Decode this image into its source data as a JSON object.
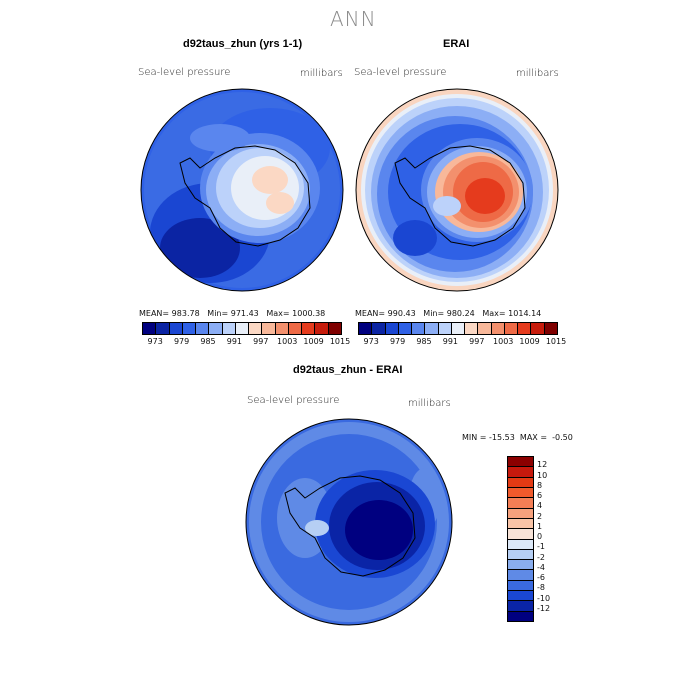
{
  "title": "ANN",
  "panels": [
    {
      "title": "d92taus_zhun (yrs 1-1)",
      "variable": "Sea-level pressure",
      "units": "millibars",
      "mean": "983.78",
      "min": "971.43",
      "max": "1000.38"
    },
    {
      "title": "ERAI",
      "variable": "Sea-level pressure",
      "units": "millibars",
      "mean": "990.43",
      "min": "980.24",
      "max": "1014.14"
    }
  ],
  "diff": {
    "title": "d92taus_zhun - ERAI",
    "variable": "Sea-level pressure",
    "units": "millibars",
    "min": "-15.53",
    "max": "-0.50"
  },
  "colorbar_colors": [
    "#00007f",
    "#0b24a3",
    "#1a46d2",
    "#2f61e6",
    "#5a86ee",
    "#8caef5",
    "#bcd2fa",
    "#e9eff8",
    "#fbd8c4",
    "#f8b89a",
    "#f3906d",
    "#ee6a46",
    "#e53b1d",
    "#c71c0c",
    "#7f0000"
  ],
  "colorbar_labels": [
    "973",
    "979",
    "985",
    "991",
    "997",
    "1003",
    "1009",
    "1015"
  ],
  "diff_colors": [
    "#8b0000",
    "#c6190d",
    "#e33a14",
    "#f05a2c",
    "#f47e55",
    "#f6a17d",
    "#f9c4a7",
    "#f8e3d7",
    "#dde9f8",
    "#b6cff4",
    "#8aaeee",
    "#5f8ae6",
    "#3a6ae0",
    "#1a47d3",
    "#0a24a6",
    "#000080"
  ],
  "diff_labels": [
    "12",
    "10",
    "8",
    "6",
    "4",
    "2",
    "1",
    "0",
    "-1",
    "-2",
    "-4",
    "-6",
    "-8",
    "-10",
    "-12"
  ]
}
